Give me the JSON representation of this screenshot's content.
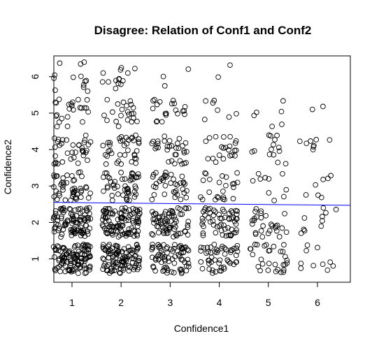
{
  "chart_data": {
    "type": "scatter",
    "title": "Disagree: Relation of Conf1 and Conf2",
    "xlabel": "Confidence1",
    "ylabel": "Confidence2",
    "xlim": [
      0.63,
      6.67
    ],
    "ylim": [
      0.36,
      6.57
    ],
    "x_ticks": [
      1,
      2,
      3,
      4,
      5,
      6
    ],
    "y_ticks": [
      1,
      2,
      3,
      4,
      5,
      6
    ],
    "point_marker": "open-circle",
    "jitter_half_width_x": 0.38,
    "jitter_half_width_y": 0.4,
    "point_groups": [
      {
        "x": 1,
        "y": 1,
        "count": 115
      },
      {
        "x": 1,
        "y": 2,
        "count": 100
      },
      {
        "x": 1,
        "y": 3,
        "count": 48
      },
      {
        "x": 1,
        "y": 4,
        "count": 36
      },
      {
        "x": 1,
        "y": 5,
        "count": 24
      },
      {
        "x": 1,
        "y": 6,
        "count": 13
      },
      {
        "x": 2,
        "y": 1,
        "count": 110
      },
      {
        "x": 2,
        "y": 2,
        "count": 105
      },
      {
        "x": 2,
        "y": 3,
        "count": 50
      },
      {
        "x": 2,
        "y": 4,
        "count": 38
      },
      {
        "x": 2,
        "y": 5,
        "count": 22
      },
      {
        "x": 2,
        "y": 6,
        "count": 14
      },
      {
        "x": 3,
        "y": 1,
        "count": 75
      },
      {
        "x": 3,
        "y": 2,
        "count": 72
      },
      {
        "x": 3,
        "y": 3,
        "count": 38
      },
      {
        "x": 3,
        "y": 4,
        "count": 32
      },
      {
        "x": 3,
        "y": 5,
        "count": 20
      },
      {
        "x": 3,
        "y": 6,
        "count": 3
      },
      {
        "x": 4,
        "y": 1,
        "count": 52
      },
      {
        "x": 4,
        "y": 2,
        "count": 58
      },
      {
        "x": 4,
        "y": 3,
        "count": 24
      },
      {
        "x": 4,
        "y": 4,
        "count": 22
      },
      {
        "x": 4,
        "y": 5,
        "count": 7
      },
      {
        "x": 4,
        "y": 6,
        "count": 2
      },
      {
        "x": 5,
        "y": 1,
        "count": 30
      },
      {
        "x": 5,
        "y": 2,
        "count": 28
      },
      {
        "x": 5,
        "y": 3,
        "count": 10
      },
      {
        "x": 5,
        "y": 4,
        "count": 14
      },
      {
        "x": 5,
        "y": 5,
        "count": 6
      },
      {
        "x": 6,
        "y": 1,
        "count": 10
      },
      {
        "x": 6,
        "y": 2,
        "count": 10
      },
      {
        "x": 6,
        "y": 3,
        "count": 7
      },
      {
        "x": 6,
        "y": 4,
        "count": 8
      },
      {
        "x": 6,
        "y": 5,
        "count": 2
      }
    ],
    "regression_line": {
      "x": [
        0.63,
        6.67
      ],
      "y": [
        2.55,
        2.47
      ],
      "color": "#0000ff"
    },
    "grid": false,
    "legend": "none"
  }
}
